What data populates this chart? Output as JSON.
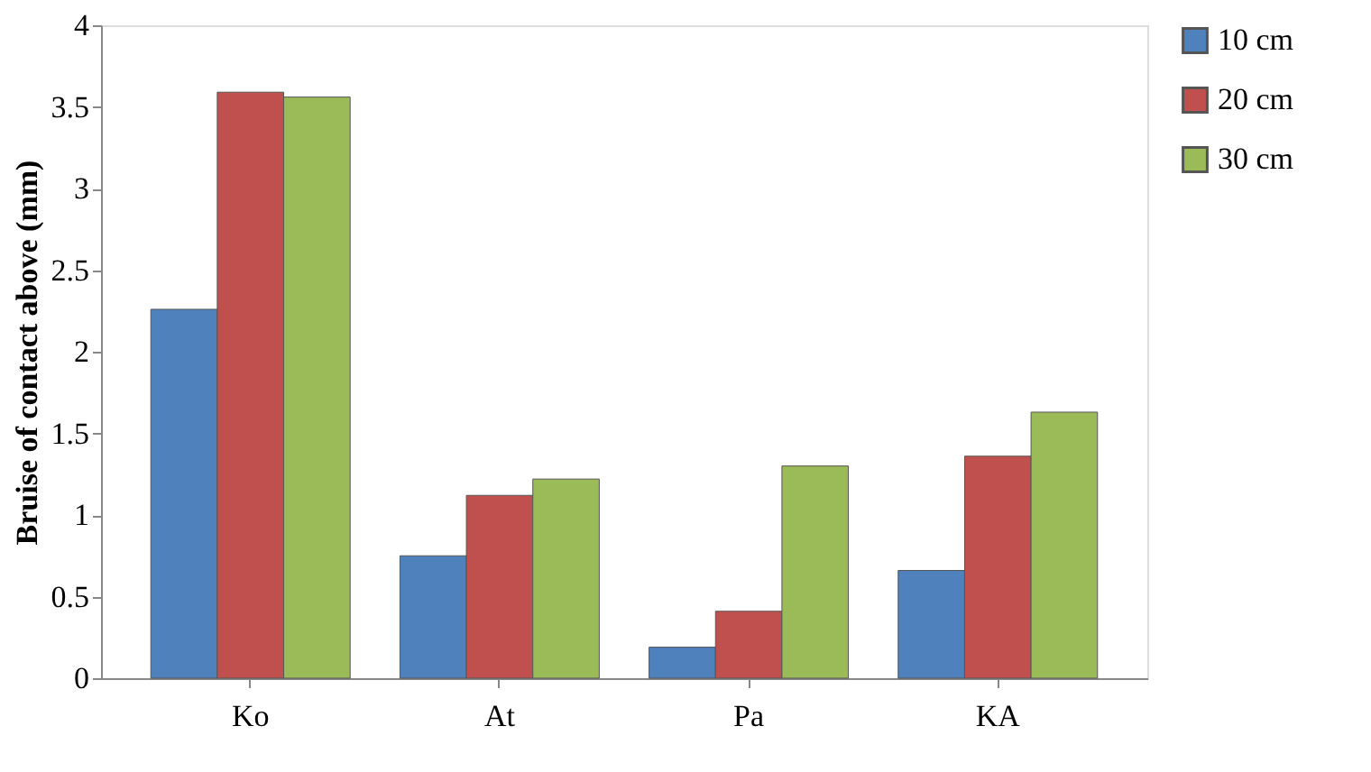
{
  "chart_data": {
    "type": "bar",
    "ylabel": "Bruise of contact above (mm)",
    "categories": [
      "Ko",
      "At",
      "Pa",
      "KA"
    ],
    "series": [
      {
        "name": "10 cm",
        "color": "#4f81bd",
        "values": [
          2.26,
          0.75,
          0.19,
          0.66
        ]
      },
      {
        "name": "20 cm",
        "color": "#c0504d",
        "values": [
          3.59,
          1.12,
          0.41,
          1.36
        ]
      },
      {
        "name": "30 cm",
        "color": "#9bbb59",
        "values": [
          3.56,
          1.22,
          1.3,
          1.63
        ]
      }
    ],
    "ylim": [
      0,
      4
    ],
    "yticks": [
      0,
      0.5,
      1,
      1.5,
      2,
      2.5,
      3,
      3.5,
      4
    ],
    "grid": false,
    "legend": "top right"
  }
}
